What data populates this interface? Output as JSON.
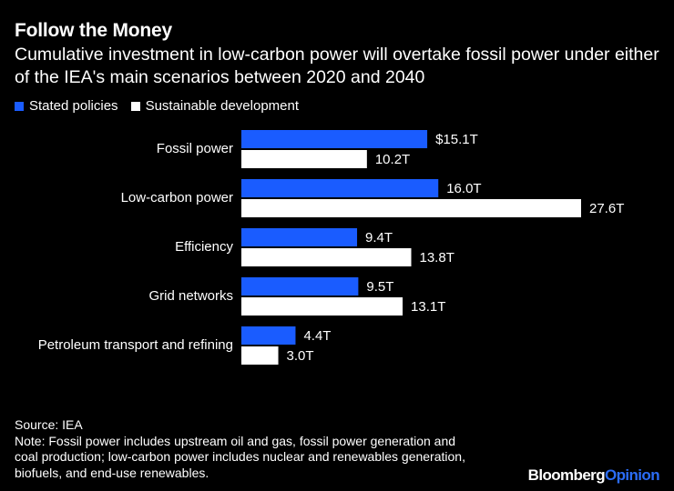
{
  "title": "Follow the Money",
  "subtitle": "Cumulative investment in low-carbon power will overtake fossil power under either of the IEA's main scenarios between 2020 and 2040",
  "colors": {
    "stated": "#1a5cff",
    "sustainable": "#ffffff",
    "background": "#000000"
  },
  "chart_data": {
    "type": "bar",
    "orientation": "horizontal",
    "title": "Follow the Money",
    "subtitle": "Cumulative investment in low-carbon power will overtake fossil power under either of the IEA's main scenarios between 2020 and 2040",
    "unit": "trillion USD",
    "categories": [
      "Fossil power",
      "Low-carbon power",
      "Efficiency",
      "Grid networks",
      "Petroleum transport and refining"
    ],
    "series": [
      {
        "name": "Stated policies",
        "values": [
          15.1,
          16.0,
          9.4,
          9.5,
          4.4
        ],
        "labels": [
          "$15.1T",
          "16.0T",
          "9.4T",
          "9.5T",
          "4.4T"
        ]
      },
      {
        "name": "Sustainable development",
        "values": [
          10.2,
          27.6,
          13.8,
          13.1,
          3.0
        ],
        "labels": [
          "10.2T",
          "27.6T",
          "13.8T",
          "13.1T",
          "3.0T"
        ]
      }
    ],
    "xlim": [
      0,
      27.6
    ],
    "legend_position": "top-left",
    "grid": false
  },
  "footer": {
    "source": "Source: IEA",
    "note_lines": [
      "Note: Fossil power includes upstream oil and gas, fossil power generation and",
      "coal production; low-carbon power includes nuclear and renewables generation,",
      "biofuels, and end-use renewables."
    ]
  },
  "brand": {
    "part1": "Bloomberg",
    "part2": "Opinion"
  }
}
